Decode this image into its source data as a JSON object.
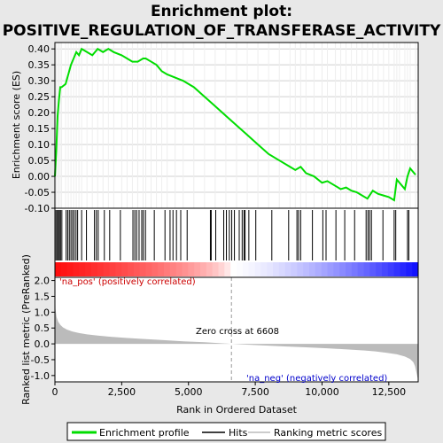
{
  "title": "Enrichment plot:",
  "subtitle": "POSITIVE_REGULATION_OF_TRANSFERASE_ACTIVITY",
  "legend": {
    "items": [
      {
        "label": "Enrichment profile",
        "color": "#00dd00"
      },
      {
        "label": "Hits",
        "color": "#000000"
      },
      {
        "label": "Ranking metric scores",
        "color": "#bbbbbb"
      }
    ]
  },
  "annotations": {
    "pos_label": "'na_pos' (positively correlated)",
    "neg_label": "'na_neg' (negatively correlated)",
    "zero_cross": "Zero cross at 6608"
  },
  "colors": {
    "profile": "#00dd00",
    "metric": "#bbbbbb",
    "pos_text": "#cc0000",
    "neg_text": "#0000cc",
    "frame_bg": "#e8e8e8"
  },
  "chart_data": [
    {
      "type": "line",
      "name": "enrichment-profile",
      "ylabel": "Enrichment score (ES)",
      "xlim": [
        0,
        13600
      ],
      "ylim": [
        -0.1,
        0.42
      ],
      "yticks": [
        -0.1,
        -0.05,
        0.0,
        0.05,
        0.1,
        0.15,
        0.2,
        0.25,
        0.3,
        0.35,
        0.4
      ],
      "ytick_labels": [
        "-0.10",
        "-0.05",
        "0.00",
        "0.05",
        "0.10",
        "0.15",
        "0.20",
        "0.25",
        "0.30",
        "0.35",
        "0.40"
      ],
      "grid": true,
      "x": [
        0,
        50,
        100,
        150,
        200,
        250,
        400,
        500,
        600,
        700,
        800,
        900,
        1000,
        1200,
        1400,
        1600,
        1800,
        2000,
        2200,
        2500,
        2700,
        2900,
        3100,
        3300,
        3400,
        3600,
        3800,
        4000,
        4200,
        4500,
        4800,
        5200,
        5600,
        6000,
        6400,
        6800,
        7200,
        7600,
        8000,
        8400,
        8800,
        9000,
        9200,
        9400,
        9700,
        10000,
        10200,
        10500,
        10700,
        10900,
        11100,
        11300,
        11500,
        11700,
        11900,
        12100,
        12300,
        12500,
        12700,
        12800,
        12900,
        13100,
        13200,
        13300,
        13500
      ],
      "y": [
        0.0,
        0.08,
        0.19,
        0.24,
        0.28,
        0.28,
        0.29,
        0.32,
        0.35,
        0.37,
        0.39,
        0.38,
        0.4,
        0.39,
        0.38,
        0.4,
        0.39,
        0.4,
        0.39,
        0.38,
        0.37,
        0.36,
        0.36,
        0.37,
        0.37,
        0.36,
        0.35,
        0.33,
        0.32,
        0.31,
        0.3,
        0.28,
        0.25,
        0.22,
        0.19,
        0.16,
        0.13,
        0.1,
        0.07,
        0.05,
        0.03,
        0.02,
        0.03,
        0.01,
        0.0,
        -0.02,
        -0.015,
        -0.03,
        -0.04,
        -0.035,
        -0.045,
        -0.05,
        -0.06,
        -0.07,
        -0.045,
        -0.055,
        -0.06,
        -0.065,
        -0.075,
        -0.01,
        -0.02,
        -0.04,
        0.0,
        0.025,
        0.005
      ]
    },
    {
      "type": "scatter",
      "name": "hits",
      "x": [
        40,
        90,
        130,
        170,
        210,
        260,
        420,
        480,
        540,
        600,
        660,
        720,
        790,
        850,
        1000,
        1180,
        1480,
        1550,
        1620,
        1850,
        2050,
        2450,
        2920,
        2990,
        3060,
        3150,
        3250,
        3310,
        3390,
        3720,
        4120,
        4310,
        4420,
        4550,
        4710,
        4950,
        5820,
        5850,
        6020,
        6320,
        6420,
        6530,
        6620,
        6720,
        6900,
        7010,
        7080,
        7120,
        7260,
        7520,
        8120,
        8750,
        9060,
        9120,
        9200,
        9640,
        10030,
        10150,
        10520,
        10850,
        11220,
        11650,
        11720,
        11780,
        11850,
        12280,
        12700,
        12760,
        13200,
        13250
      ]
    },
    {
      "type": "area",
      "name": "ranking-metric",
      "xlabel": "Rank in Ordered Dataset",
      "ylabel": "Ranked list metric (PreRanked)",
      "xlim": [
        0,
        13600
      ],
      "ylim": [
        -1.2,
        2.1
      ],
      "yticks": [
        -1.0,
        -0.5,
        0.0,
        0.5,
        1.0,
        1.5,
        2.0
      ],
      "ytick_labels": [
        "-1.0",
        "-0.5",
        "0.0",
        "0.5",
        "1.0",
        "1.5",
        "2.0"
      ],
      "xticks": [
        0,
        2500,
        5000,
        7500,
        10000,
        12500
      ],
      "xtick_labels": [
        "0",
        "2,500",
        "5,000",
        "7,500",
        "10,000",
        "12,500"
      ],
      "zero_cross": 6608,
      "x": [
        0,
        20,
        60,
        120,
        200,
        300,
        450,
        650,
        900,
        1200,
        1600,
        2000,
        2600,
        3200,
        4000,
        4800,
        5600,
        6200,
        6608,
        7000,
        7800,
        8600,
        9400,
        10200,
        11000,
        11600,
        12000,
        12400,
        12800,
        13100,
        13300,
        13420,
        13480,
        13520,
        13560,
        13600
      ],
      "y": [
        2.0,
        1.1,
        0.85,
        0.7,
        0.6,
        0.52,
        0.45,
        0.39,
        0.34,
        0.3,
        0.26,
        0.23,
        0.19,
        0.16,
        0.12,
        0.08,
        0.05,
        0.02,
        0.0,
        -0.02,
        -0.05,
        -0.08,
        -0.11,
        -0.14,
        -0.18,
        -0.21,
        -0.24,
        -0.28,
        -0.33,
        -0.4,
        -0.48,
        -0.58,
        -0.7,
        -0.85,
        -1.0,
        -1.15
      ]
    }
  ]
}
